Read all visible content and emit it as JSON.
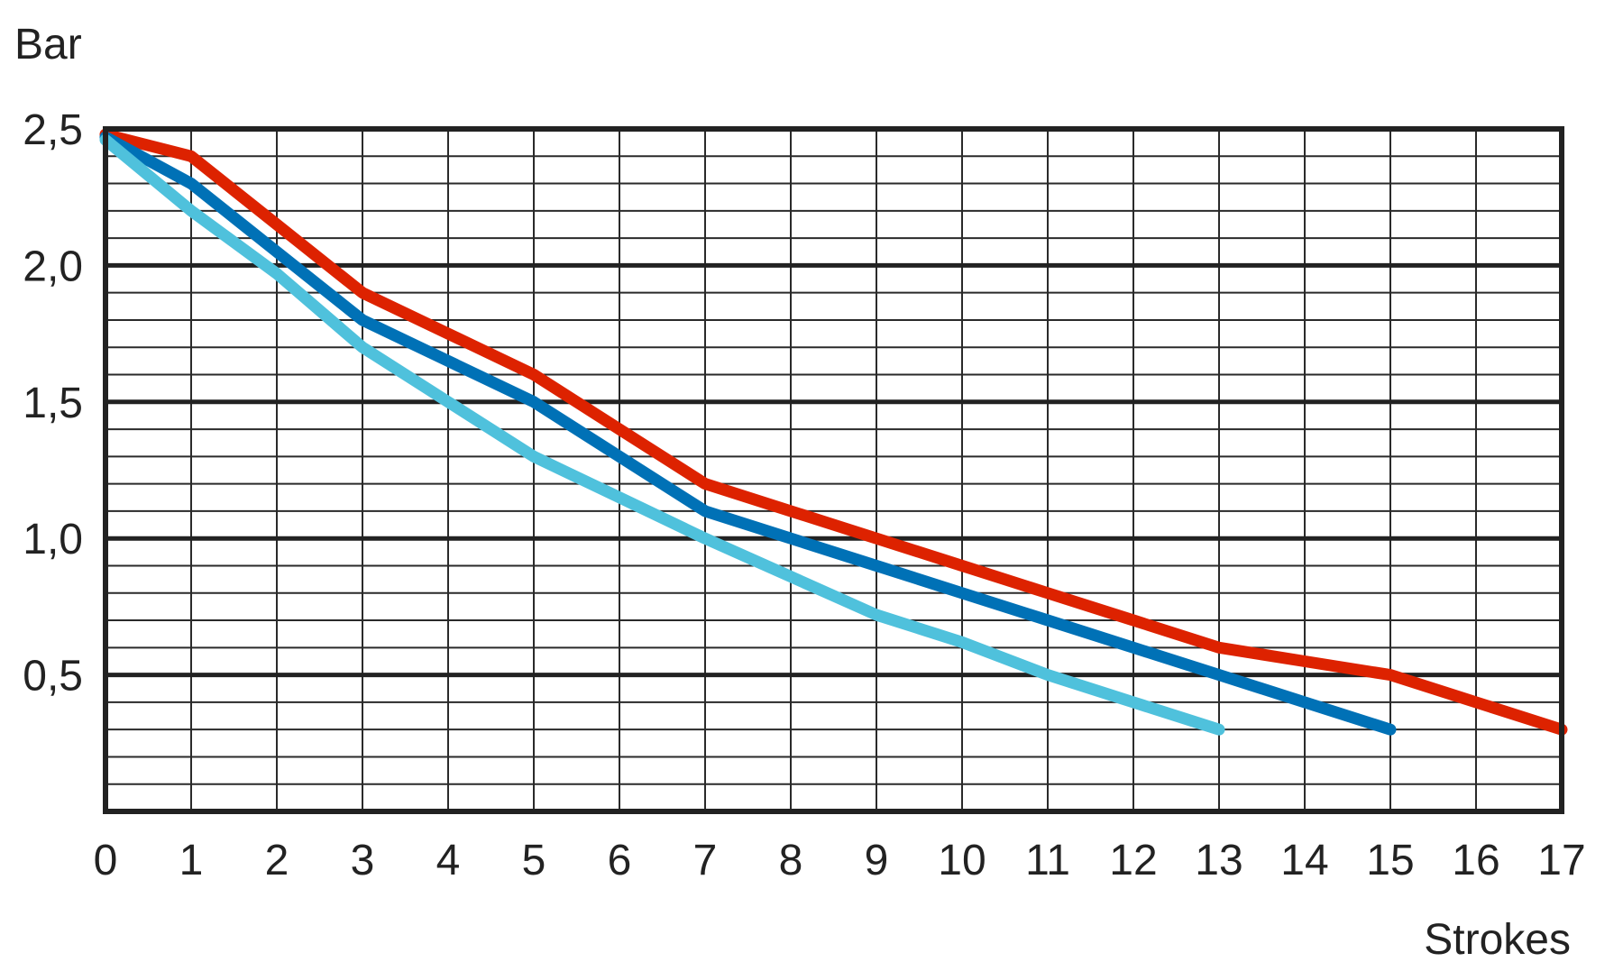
{
  "chart_data": {
    "type": "line",
    "title": "",
    "xlabel": "Strokes",
    "ylabel": "Bar",
    "xlim": [
      0,
      17
    ],
    "ylim": [
      0,
      2.5
    ],
    "grid": true,
    "legend": null,
    "x_ticks": [
      "0",
      "1",
      "2",
      "3",
      "4",
      "5",
      "6",
      "7",
      "8",
      "9",
      "10",
      "11",
      "12",
      "13",
      "14",
      "15",
      "16",
      "17"
    ],
    "y_ticks": [
      {
        "value": 2.5,
        "label": "2,5"
      },
      {
        "value": 2.0,
        "label": "2,0"
      },
      {
        "value": 1.5,
        "label": "1,5"
      },
      {
        "value": 1.0,
        "label": "1,0"
      },
      {
        "value": 0.5,
        "label": "0,5"
      }
    ],
    "minor_y_step": 0.1,
    "series": [
      {
        "name": "red",
        "color": "#DD2200",
        "x": [
          0,
          1,
          2,
          3,
          4,
          5,
          6,
          7,
          8,
          9,
          10,
          11,
          12,
          13,
          14,
          15,
          16,
          17
        ],
        "values": [
          2.48,
          2.4,
          2.15,
          1.9,
          1.75,
          1.6,
          1.4,
          1.2,
          1.1,
          1.0,
          0.9,
          0.8,
          0.7,
          0.6,
          0.55,
          0.5,
          0.4,
          0.3
        ]
      },
      {
        "name": "blue",
        "color": "#0071B6",
        "x": [
          0,
          1,
          2,
          3,
          4,
          5,
          6,
          7,
          8,
          9,
          10,
          11,
          12,
          13,
          14,
          15
        ],
        "values": [
          2.47,
          2.3,
          2.05,
          1.8,
          1.65,
          1.5,
          1.3,
          1.1,
          1.0,
          0.9,
          0.8,
          0.7,
          0.6,
          0.5,
          0.4,
          0.3
        ]
      },
      {
        "name": "light-blue",
        "color": "#4FC1DC",
        "x": [
          0,
          1,
          2,
          3,
          4,
          5,
          6,
          7,
          8,
          9,
          10,
          11,
          12,
          13
        ],
        "values": [
          2.46,
          2.2,
          1.97,
          1.7,
          1.5,
          1.3,
          1.15,
          1.0,
          0.86,
          0.72,
          0.62,
          0.5,
          0.4,
          0.3
        ]
      }
    ]
  }
}
